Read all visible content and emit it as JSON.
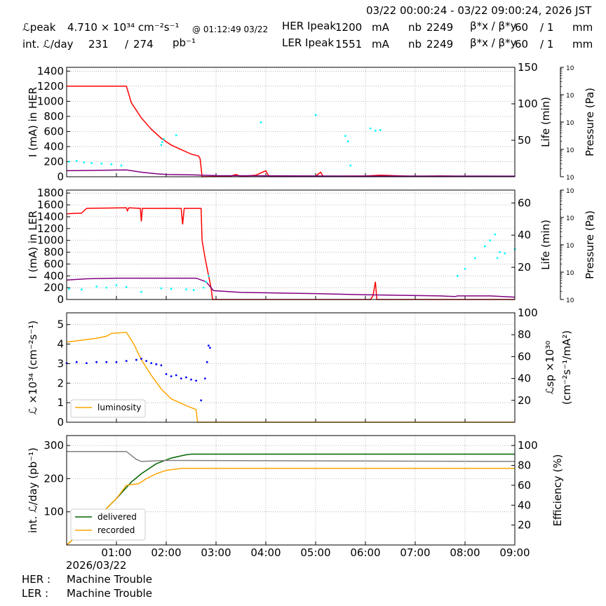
{
  "header": {
    "time_range": "03/22 00:00:24 - 03/22 09:00:24, 2026 JST",
    "lpeak_label": "ℒpeak",
    "lpeak_value": "4.710  × 10³⁴ cm⁻²s⁻¹",
    "lpeak_time": "@ 01:12:49 03/22",
    "intl_label": "int. ℒ/day",
    "intl_value": "231",
    "intl_sep": "/",
    "intl_value2": "274",
    "intl_unit": "pb⁻¹",
    "her_ipeak_label": "HER Ipeak",
    "her_ipeak_value": "1200",
    "ler_ipeak_label": "LER Ipeak",
    "ler_ipeak_value": "1551",
    "ma_unit": "mA",
    "nb_label": "nb",
    "her_nb": "2249",
    "ler_nb": "2249",
    "beta_label": "β*x / β*y",
    "beta_x": "60",
    "beta_y": "/ 1",
    "mm_unit": "mm"
  },
  "footer": {
    "date": "2026/03/22",
    "her_label": "HER :",
    "her_status": "Machine Trouble",
    "ler_label": "LER :",
    "ler_status": "Machine Trouble"
  },
  "colors": {
    "current": "#ff0000",
    "life": "#00ffff",
    "pressure": "#800080",
    "luminosity": "#ffa500",
    "specific": "#0000ff",
    "delivered": "#006400",
    "recorded": "#ffa500",
    "efficiency": "#808080"
  },
  "chart_data": [
    {
      "type": "line",
      "name": "her",
      "ylabel": "I (mA) in HER",
      "y2label": "Life (min)",
      "y3label": "Pressure (Pa)",
      "ylim": [
        0,
        1450
      ],
      "yticks": [
        0,
        200,
        400,
        600,
        800,
        1000,
        1200,
        1400
      ],
      "y2lim": [
        0,
        150
      ],
      "y2ticks": [
        50,
        100,
        150
      ],
      "y3ticks": [
        "10⁻⁸",
        "10⁻⁷",
        "10⁻⁶",
        "10⁻⁵",
        "10⁻⁴"
      ],
      "series": [
        {
          "key": "current",
          "points": [
            [
              0,
              1200
            ],
            [
              1.2,
              1200
            ],
            [
              1.3,
              980
            ],
            [
              1.5,
              780
            ],
            [
              1.7,
              630
            ],
            [
              1.9,
              510
            ],
            [
              2.1,
              420
            ],
            [
              2.3,
              360
            ],
            [
              2.4,
              330
            ],
            [
              2.5,
              300
            ],
            [
              2.65,
              275
            ],
            [
              2.68,
              240
            ],
            [
              2.72,
              0
            ],
            [
              3.0,
              5
            ],
            [
              3.3,
              10
            ],
            [
              3.4,
              30
            ],
            [
              3.5,
              5
            ],
            [
              3.8,
              20
            ],
            [
              4.0,
              80
            ],
            [
              4.05,
              20
            ],
            [
              4.1,
              5
            ],
            [
              5.0,
              8
            ],
            [
              5.1,
              60
            ],
            [
              5.15,
              5
            ],
            [
              6.0,
              10
            ],
            [
              6.3,
              20
            ],
            [
              7.0,
              5
            ],
            [
              7.5,
              10
            ],
            [
              8.0,
              5
            ],
            [
              9.0,
              5
            ]
          ]
        },
        {
          "key": "pressure",
          "points": [
            [
              0,
              80
            ],
            [
              1.2,
              90
            ],
            [
              1.5,
              60
            ],
            [
              1.8,
              40
            ],
            [
              2.0,
              30
            ],
            [
              2.5,
              25
            ],
            [
              3.0,
              15
            ],
            [
              5.0,
              10
            ],
            [
              9.0,
              8
            ]
          ]
        },
        {
          "key": "life_dots",
          "points": [
            [
              0.05,
              200
            ],
            [
              0.2,
              210
            ],
            [
              0.35,
              190
            ],
            [
              0.5,
              180
            ],
            [
              0.7,
              175
            ],
            [
              0.9,
              165
            ],
            [
              1.1,
              150
            ],
            [
              1.9,
              420
            ],
            [
              1.92,
              460
            ],
            [
              1.95,
              500
            ],
            [
              2.2,
              550
            ],
            [
              3.9,
              720
            ],
            [
              5.0,
              820
            ],
            [
              5.6,
              540
            ],
            [
              5.65,
              470
            ],
            [
              5.7,
              150
            ],
            [
              6.1,
              640
            ],
            [
              6.2,
              610
            ],
            [
              6.3,
              620
            ]
          ]
        }
      ]
    },
    {
      "type": "line",
      "name": "ler",
      "ylabel": "I (mA) in LER",
      "y2label": "Life (min)",
      "y3label": "Pressure (Pa)",
      "ylim": [
        0,
        1850
      ],
      "yticks": [
        0,
        200,
        400,
        600,
        800,
        1000,
        1200,
        1400,
        1600,
        1800
      ],
      "y2lim": [
        0,
        68
      ],
      "y2ticks": [
        20,
        40,
        60
      ],
      "y3ticks": [
        "10⁻⁸",
        "10⁻⁷",
        "10⁻⁶",
        "10⁻⁵",
        "10⁻⁴"
      ],
      "series": [
        {
          "key": "current",
          "points": [
            [
              0,
              1450
            ],
            [
              0.3,
              1460
            ],
            [
              0.4,
              1540
            ],
            [
              1.2,
              1550
            ],
            [
              1.22,
              1500
            ],
            [
              1.25,
              1550
            ],
            [
              1.48,
              1540
            ],
            [
              1.5,
              1320
            ],
            [
              1.52,
              1540
            ],
            [
              2.3,
              1540
            ],
            [
              2.33,
              1270
            ],
            [
              2.36,
              1540
            ],
            [
              2.7,
              1540
            ],
            [
              2.72,
              1000
            ],
            [
              2.78,
              700
            ],
            [
              2.84,
              450
            ],
            [
              2.9,
              200
            ],
            [
              2.93,
              0
            ],
            [
              6.1,
              0
            ],
            [
              6.15,
              60
            ],
            [
              6.2,
              300
            ],
            [
              6.23,
              0
            ],
            [
              9.0,
              0
            ]
          ]
        },
        {
          "key": "pressure",
          "points": [
            [
              0,
              330
            ],
            [
              0.4,
              350
            ],
            [
              1.0,
              360
            ],
            [
              2.0,
              360
            ],
            [
              2.6,
              360
            ],
            [
              2.8,
              300
            ],
            [
              2.95,
              150
            ],
            [
              3.5,
              120
            ],
            [
              5.0,
              100
            ],
            [
              6.0,
              80
            ],
            [
              7.5,
              60
            ],
            [
              7.8,
              50
            ],
            [
              7.85,
              60
            ],
            [
              8.5,
              60
            ],
            [
              9.0,
              40
            ]
          ]
        },
        {
          "key": "life_dots",
          "points": [
            [
              0.05,
              180
            ],
            [
              0.3,
              170
            ],
            [
              0.6,
              220
            ],
            [
              0.8,
              200
            ],
            [
              1.0,
              240
            ],
            [
              1.2,
              210
            ],
            [
              1.5,
              130
            ],
            [
              1.9,
              190
            ],
            [
              2.1,
              180
            ],
            [
              2.4,
              170
            ],
            [
              2.55,
              160
            ],
            [
              2.75,
              200
            ],
            [
              2.8,
              300
            ],
            [
              2.85,
              400
            ],
            [
              7.85,
              400
            ],
            [
              8.0,
              520
            ],
            [
              8.2,
              700
            ],
            [
              8.4,
              900
            ],
            [
              8.5,
              1000
            ],
            [
              8.6,
              1100
            ],
            [
              8.65,
              700
            ],
            [
              8.7,
              800
            ],
            [
              8.8,
              780
            ],
            [
              9.0,
              850
            ]
          ]
        }
      ]
    },
    {
      "type": "line",
      "name": "luminosity",
      "ylabel": "ℒ ×10³⁴ (cm⁻²s⁻¹)",
      "y2label": "ℒsp ×10³⁰",
      "y2label2": "(cm⁻²s⁻¹/mA²)",
      "ylim": [
        0,
        5.6
      ],
      "yticks": [
        0,
        1,
        2,
        3,
        4,
        5
      ],
      "y2lim": [
        0,
        100
      ],
      "y2ticks": [
        20,
        40,
        60,
        80,
        100
      ],
      "legend": [
        "luminosity"
      ],
      "series": [
        {
          "key": "luminosity",
          "points": [
            [
              0,
              4.1
            ],
            [
              0.3,
              4.2
            ],
            [
              0.6,
              4.3
            ],
            [
              0.8,
              4.4
            ],
            [
              0.9,
              4.55
            ],
            [
              1.2,
              4.6
            ],
            [
              1.25,
              4.4
            ],
            [
              1.35,
              4.0
            ],
            [
              1.5,
              3.2
            ],
            [
              1.6,
              2.8
            ],
            [
              1.7,
              2.4
            ],
            [
              1.9,
              1.7
            ],
            [
              2.1,
              1.2
            ],
            [
              2.4,
              0.85
            ],
            [
              2.6,
              0.65
            ],
            [
              2.63,
              0
            ],
            [
              9.0,
              0
            ]
          ]
        },
        {
          "key": "specific_dots",
          "points": [
            [
              0,
              54
            ],
            [
              0.2,
              55
            ],
            [
              0.4,
              54
            ],
            [
              0.6,
              55
            ],
            [
              0.8,
              55
            ],
            [
              1.0,
              55
            ],
            [
              1.2,
              56
            ],
            [
              1.4,
              57
            ],
            [
              1.5,
              58
            ],
            [
              1.6,
              56
            ],
            [
              1.7,
              54
            ],
            [
              1.8,
              53
            ],
            [
              1.9,
              52
            ],
            [
              2.0,
              44
            ],
            [
              2.1,
              42
            ],
            [
              2.2,
              43
            ],
            [
              2.3,
              40
            ],
            [
              2.4,
              41
            ],
            [
              2.5,
              39
            ],
            [
              2.6,
              38
            ],
            [
              2.7,
              20
            ],
            [
              2.78,
              40
            ],
            [
              2.82,
              55
            ],
            [
              2.85,
              70
            ],
            [
              2.88,
              68
            ]
          ]
        }
      ]
    },
    {
      "type": "line",
      "name": "integrated",
      "ylabel": "int. ℒ/day (pb⁻¹)",
      "y2label": "Efficiency (%)",
      "ylim": [
        0,
        330
      ],
      "yticks": [
        100,
        200,
        300
      ],
      "y2lim": [
        0,
        110
      ],
      "y2ticks": [
        20,
        40,
        60,
        80,
        100
      ],
      "legend": [
        "delivered",
        "recorded"
      ],
      "xticks": [
        "01:00",
        "02:00",
        "03:00",
        "04:00",
        "05:00",
        "06:00",
        "07:00",
        "08:00",
        "09:00"
      ],
      "series": [
        {
          "key": "delivered",
          "points": [
            [
              0,
              0
            ],
            [
              0.5,
              65
            ],
            [
              1.0,
              140
            ],
            [
              1.3,
              190
            ],
            [
              1.5,
              215
            ],
            [
              1.8,
              245
            ],
            [
              2.1,
              262
            ],
            [
              2.4,
              272
            ],
            [
              2.5,
              274
            ],
            [
              9.0,
              274
            ]
          ]
        },
        {
          "key": "recorded",
          "points": [
            [
              0,
              0
            ],
            [
              0.5,
              65
            ],
            [
              1.0,
              140
            ],
            [
              1.2,
              180
            ],
            [
              1.45,
              185
            ],
            [
              1.6,
              200
            ],
            [
              1.8,
              215
            ],
            [
              2.0,
              225
            ],
            [
              2.3,
              231
            ],
            [
              9.0,
              231
            ]
          ]
        },
        {
          "key": "efficiency",
          "points": [
            [
              0,
              94
            ],
            [
              1.2,
              94
            ],
            [
              1.4,
              86
            ],
            [
              1.5,
              84
            ],
            [
              2.0,
              85
            ],
            [
              9.0,
              84
            ]
          ]
        }
      ]
    }
  ]
}
